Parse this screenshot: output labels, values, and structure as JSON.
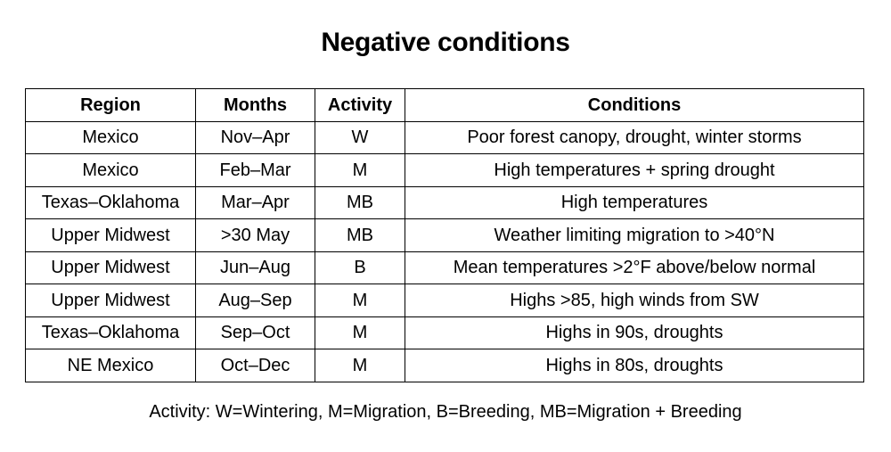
{
  "title": "Negative conditions",
  "table": {
    "headers": {
      "region": "Region",
      "months": "Months",
      "activity": "Activity",
      "conditions": "Conditions"
    },
    "rows": [
      {
        "region": "Mexico",
        "months": "Nov–Apr",
        "activity": "W",
        "conditions": "Poor forest canopy, drought, winter storms"
      },
      {
        "region": "Mexico",
        "months": "Feb–Mar",
        "activity": "M",
        "conditions": "High temperatures + spring drought"
      },
      {
        "region": "Texas–Oklahoma",
        "months": "Mar–Apr",
        "activity": "MB",
        "conditions": "High temperatures"
      },
      {
        "region": "Upper Midwest",
        "months": ">30 May",
        "activity": "MB",
        "conditions": "Weather limiting migration to >40°N"
      },
      {
        "region": "Upper Midwest",
        "months": "Jun–Aug",
        "activity": "B",
        "conditions": "Mean temperatures >2°F above/below normal"
      },
      {
        "region": "Upper Midwest",
        "months": "Aug–Sep",
        "activity": "M",
        "conditions": "Highs >85, high winds from SW"
      },
      {
        "region": "Texas–Oklahoma",
        "months": "Sep–Oct",
        "activity": "M",
        "conditions": "Highs in 90s, droughts"
      },
      {
        "region": "NE Mexico",
        "months": "Oct–Dec",
        "activity": "M",
        "conditions": "Highs in 80s, droughts"
      }
    ]
  },
  "footnote": "Activity: W=Wintering, M=Migration, B=Breeding, MB=Migration + Breeding"
}
